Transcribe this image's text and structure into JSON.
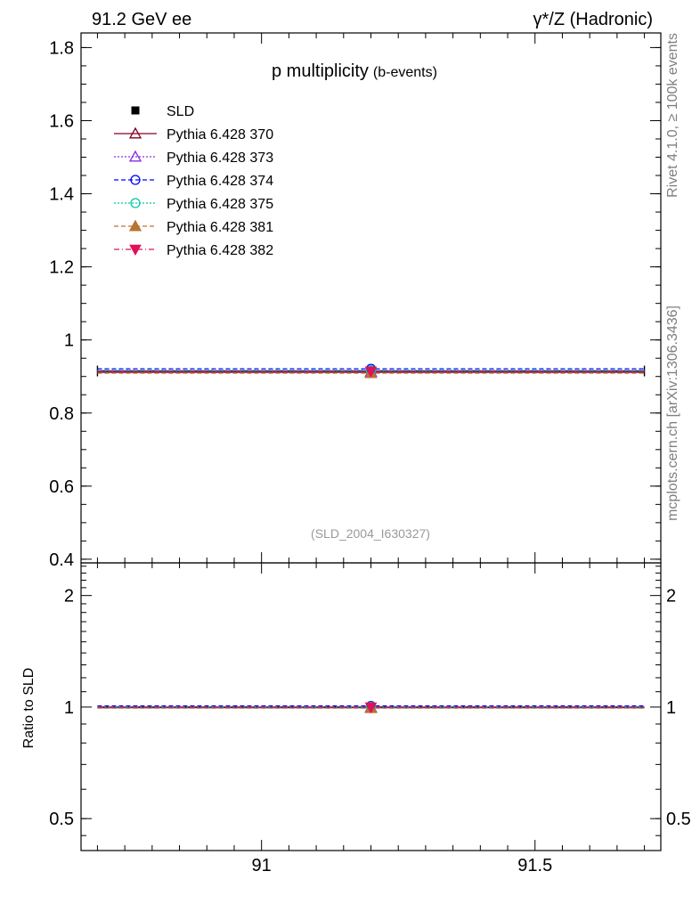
{
  "header": {
    "left": "91.2 GeV ee",
    "right": "γ*/Z (Hadronic)"
  },
  "side_labels": {
    "rivet": "Rivet 4.1.0, ≥ 100k events",
    "mcplots": "mcplots.cern.ch [arXiv:1306.3436]"
  },
  "chart_data": {
    "type": "scatter",
    "title": "p multiplicity",
    "subtitle": "(b-events)",
    "analysis_id": "(SLD_2004_I630327)",
    "xlabel": "",
    "ylabel": "",
    "xlim": [
      90.67,
      91.73
    ],
    "ylim": [
      0.39,
      1.84
    ],
    "yticks": [
      0.4,
      0.6,
      0.8,
      1,
      1.2,
      1.4,
      1.6,
      1.8
    ],
    "ytick_labels": [
      "0.4",
      "0.6",
      "0.8",
      "1",
      "1.2",
      "1.4",
      "1.6",
      "1.8"
    ],
    "xticks": [
      91,
      91.5
    ],
    "xtick_labels": [
      "91",
      "91.5"
    ],
    "grid": false,
    "legend_position": "top-left",
    "x": [
      91.2
    ],
    "x_range": [
      90.7,
      91.7
    ],
    "series": [
      {
        "name": "SLD",
        "values": [
          0.915
        ],
        "color": "#000000",
        "marker": "square-filled",
        "line": "none"
      },
      {
        "name": "Pythia 6.428 370",
        "values": [
          0.911
        ],
        "color": "#800020",
        "marker": "triangle-open",
        "line": "solid"
      },
      {
        "name": "Pythia 6.428 373",
        "values": [
          0.913
        ],
        "color": "#8a2be2",
        "marker": "triangle-open",
        "line": "dotted"
      },
      {
        "name": "Pythia 6.428 374",
        "values": [
          0.921
        ],
        "color": "#0000ff",
        "marker": "circle-open",
        "line": "dashed"
      },
      {
        "name": "Pythia 6.428 375",
        "values": [
          0.917
        ],
        "color": "#00c8a0",
        "marker": "circle-open",
        "line": "dotted"
      },
      {
        "name": "Pythia 6.428 381",
        "values": [
          0.909
        ],
        "color": "#b87333",
        "marker": "triangle-filled",
        "line": "dashed"
      },
      {
        "name": "Pythia 6.428 382",
        "values": [
          0.914
        ],
        "color": "#e0105a",
        "marker": "triangle-down-filled",
        "line": "dashdot"
      }
    ],
    "ratio": {
      "ylabel": "Ratio to SLD",
      "scale": "log",
      "ylim": [
        0.41,
        2.45
      ],
      "yticks": [
        0.5,
        1,
        2
      ],
      "ytick_labels": [
        "0.5",
        "1",
        "2"
      ],
      "values": [
        1.0,
        0.996,
        0.998,
        1.007,
        1.002,
        0.993,
        0.999
      ]
    }
  }
}
